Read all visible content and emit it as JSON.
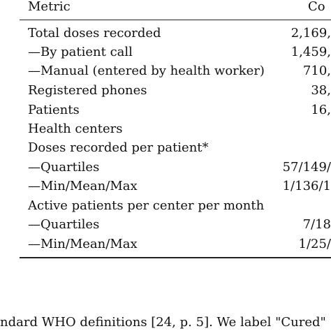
{
  "table": {
    "header": {
      "metric": "Metric",
      "count": "Co"
    },
    "rows": [
      {
        "label": "Total doses recorded",
        "value": "2,169,"
      },
      {
        "label": "—By patient call",
        "value": "1,459,"
      },
      {
        "label": "—Manual (entered by health worker)",
        "value": "710,"
      },
      {
        "label": "Registered phones",
        "value": "38,"
      },
      {
        "label": "Patients",
        "value": "16,"
      },
      {
        "label": "Health centers",
        "value": ""
      },
      {
        "label": "Doses recorded per patient*",
        "value": ""
      },
      {
        "label": "—Quartiles",
        "value": "57/149/"
      },
      {
        "label": "—Min/Mean/Max",
        "value": "1/136/1"
      },
      {
        "label": "Active patients per center per month",
        "value": ""
      },
      {
        "label": "—Quartiles",
        "value": "7/18"
      },
      {
        "label": "—Min/Mean/Max",
        "value": "1/25/"
      }
    ]
  },
  "footnote": "ndard WHO definitions [24, p. 5]. We label \"Cured\""
}
